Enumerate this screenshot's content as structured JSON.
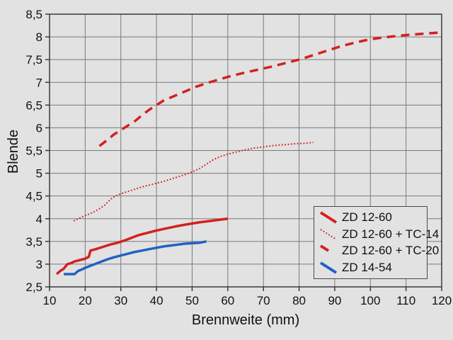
{
  "figure": {
    "background": "#e2e2e2"
  },
  "chart_data": {
    "type": "line",
    "title": "",
    "xlabel": "Brennweite (mm)",
    "ylabel": "Blende",
    "xlim": [
      10,
      120
    ],
    "ylim": [
      2.5,
      8.5
    ],
    "x_ticks": [
      10,
      20,
      30,
      40,
      50,
      60,
      70,
      80,
      90,
      100,
      110,
      120
    ],
    "x_tick_labels": [
      "10",
      "20",
      "30",
      "40",
      "50",
      "60",
      "70",
      "80",
      "90",
      "100",
      "110",
      "120"
    ],
    "y_ticks": [
      2.5,
      3,
      3.5,
      4,
      4.5,
      5,
      5.5,
      6,
      6.5,
      7,
      7.5,
      8,
      8.5
    ],
    "y_tick_labels": [
      "2,5",
      "3",
      "3,5",
      "4",
      "4,5",
      "5",
      "5,5",
      "6",
      "6,5",
      "7",
      "7,5",
      "8",
      "8,5"
    ],
    "grid": true,
    "legend_position": "lower-right",
    "colors": {
      "red": "#d42020",
      "blue": "#2161c3",
      "grid": "#7a7a7a",
      "frame": "#3a3a3a",
      "text": "#111111"
    },
    "series": [
      {
        "name": "ZD 12-60",
        "color": "#d42020",
        "style": "solid",
        "width": 3.5,
        "points": [
          [
            12,
            2.78
          ],
          [
            13,
            2.85
          ],
          [
            14,
            2.9
          ],
          [
            15,
            3.0
          ],
          [
            16,
            3.02
          ],
          [
            17,
            3.06
          ],
          [
            18,
            3.08
          ],
          [
            19,
            3.1
          ],
          [
            20,
            3.12
          ],
          [
            21,
            3.16
          ],
          [
            21.5,
            3.3
          ],
          [
            23,
            3.33
          ],
          [
            25,
            3.38
          ],
          [
            27,
            3.43
          ],
          [
            29,
            3.47
          ],
          [
            31,
            3.52
          ],
          [
            33,
            3.58
          ],
          [
            35,
            3.64
          ],
          [
            37,
            3.68
          ],
          [
            40,
            3.74
          ],
          [
            43,
            3.79
          ],
          [
            46,
            3.84
          ],
          [
            49,
            3.88
          ],
          [
            52,
            3.92
          ],
          [
            55,
            3.95
          ],
          [
            58,
            3.98
          ],
          [
            60,
            4.0
          ]
        ]
      },
      {
        "name": "ZD 12-60 + TC-14",
        "color": "#d42020",
        "style": "dotted",
        "width": 2,
        "points": [
          [
            16.8,
            3.95
          ],
          [
            18,
            4.0
          ],
          [
            19.5,
            4.05
          ],
          [
            21,
            4.1
          ],
          [
            22.5,
            4.15
          ],
          [
            24,
            4.22
          ],
          [
            25.5,
            4.3
          ],
          [
            27,
            4.42
          ],
          [
            28.5,
            4.5
          ],
          [
            30,
            4.55
          ],
          [
            32,
            4.6
          ],
          [
            34,
            4.65
          ],
          [
            36,
            4.7
          ],
          [
            38,
            4.74
          ],
          [
            40,
            4.78
          ],
          [
            42,
            4.82
          ],
          [
            44,
            4.87
          ],
          [
            46,
            4.92
          ],
          [
            48,
            4.97
          ],
          [
            50,
            5.03
          ],
          [
            52,
            5.1
          ],
          [
            54,
            5.2
          ],
          [
            56,
            5.3
          ],
          [
            58,
            5.37
          ],
          [
            60,
            5.42
          ],
          [
            62,
            5.46
          ],
          [
            64,
            5.5
          ],
          [
            67,
            5.55
          ],
          [
            70,
            5.58
          ],
          [
            73,
            5.61
          ],
          [
            76,
            5.63
          ],
          [
            79,
            5.65
          ],
          [
            82,
            5.66
          ],
          [
            84,
            5.68
          ]
        ]
      },
      {
        "name": "ZD 12-60 + TC-20",
        "color": "#d42020",
        "style": "dashed",
        "width": 3.5,
        "points": [
          [
            24,
            5.6
          ],
          [
            26,
            5.72
          ],
          [
            28,
            5.85
          ],
          [
            30,
            5.95
          ],
          [
            32,
            6.05
          ],
          [
            34,
            6.15
          ],
          [
            36,
            6.28
          ],
          [
            38,
            6.4
          ],
          [
            40,
            6.5
          ],
          [
            42,
            6.6
          ],
          [
            45,
            6.7
          ],
          [
            48,
            6.8
          ],
          [
            51,
            6.9
          ],
          [
            54,
            6.98
          ],
          [
            57,
            7.05
          ],
          [
            60,
            7.12
          ],
          [
            64,
            7.2
          ],
          [
            68,
            7.27
          ],
          [
            72,
            7.34
          ],
          [
            76,
            7.42
          ],
          [
            80,
            7.5
          ],
          [
            84,
            7.6
          ],
          [
            88,
            7.7
          ],
          [
            92,
            7.8
          ],
          [
            96,
            7.88
          ],
          [
            100,
            7.95
          ],
          [
            105,
            8.0
          ],
          [
            110,
            8.04
          ],
          [
            115,
            8.07
          ],
          [
            120,
            8.1
          ]
        ]
      },
      {
        "name": "ZD 14-54",
        "color": "#2161c3",
        "style": "solid",
        "width": 3.5,
        "points": [
          [
            14,
            2.78
          ],
          [
            15,
            2.78
          ],
          [
            16,
            2.78
          ],
          [
            17,
            2.78
          ],
          [
            18,
            2.85
          ],
          [
            19,
            2.88
          ],
          [
            20,
            2.92
          ],
          [
            22,
            2.98
          ],
          [
            24,
            3.04
          ],
          [
            26,
            3.1
          ],
          [
            28,
            3.15
          ],
          [
            30,
            3.19
          ],
          [
            32,
            3.23
          ],
          [
            34,
            3.27
          ],
          [
            36,
            3.3
          ],
          [
            38,
            3.33
          ],
          [
            40,
            3.36
          ],
          [
            42,
            3.39
          ],
          [
            44,
            3.41
          ],
          [
            46,
            3.43
          ],
          [
            48,
            3.45
          ],
          [
            50,
            3.46
          ],
          [
            52,
            3.47
          ],
          [
            54,
            3.5
          ]
        ]
      }
    ]
  }
}
